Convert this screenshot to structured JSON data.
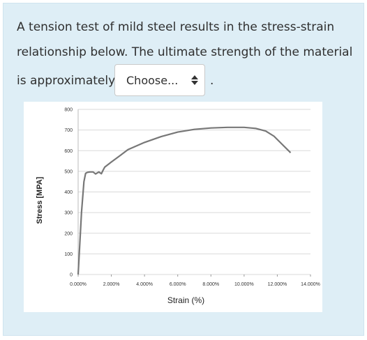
{
  "question": {
    "line1": "A tension test of mild steel results in the stress-strain",
    "line2": "relationship below. The ultimate strength of the material",
    "line3": "is approximately",
    "end_punct": "."
  },
  "answer_select": {
    "selected": "Choose..."
  },
  "colors": {
    "card_bg": "#deeef6",
    "curve": "#777777",
    "grid": "#d9d9d9"
  },
  "chart_data": {
    "type": "line",
    "xlabel": "Strain (%)",
    "ylabel": "Stress [MPA]",
    "xlim": [
      0,
      14
    ],
    "ylim": [
      0,
      800
    ],
    "x_ticks": [
      "0.000%",
      "2.000%",
      "4.000%",
      "6.000%",
      "8.000%",
      "10.000%",
      "12.000%",
      "14.000%"
    ],
    "y_ticks": [
      "0",
      "100",
      "200",
      "300",
      "400",
      "500",
      "600",
      "700",
      "800"
    ],
    "grid": true,
    "series": [
      {
        "x": [
          0,
          0.1,
          0.2,
          0.35,
          0.45,
          0.55,
          0.7,
          0.9,
          1.05,
          1.25,
          1.4,
          1.5,
          1.6,
          2.0,
          2.5,
          3.0,
          4.0,
          5.0,
          6.0,
          7.0,
          8.0,
          9.0,
          10.0,
          10.7,
          11.3,
          11.8,
          12.3,
          12.8
        ],
        "y": [
          0,
          150,
          300,
          450,
          490,
          495,
          497,
          497,
          487,
          497,
          488,
          505,
          520,
          545,
          575,
          605,
          640,
          668,
          690,
          703,
          710,
          713,
          713,
          708,
          695,
          670,
          630,
          590
        ]
      }
    ]
  }
}
